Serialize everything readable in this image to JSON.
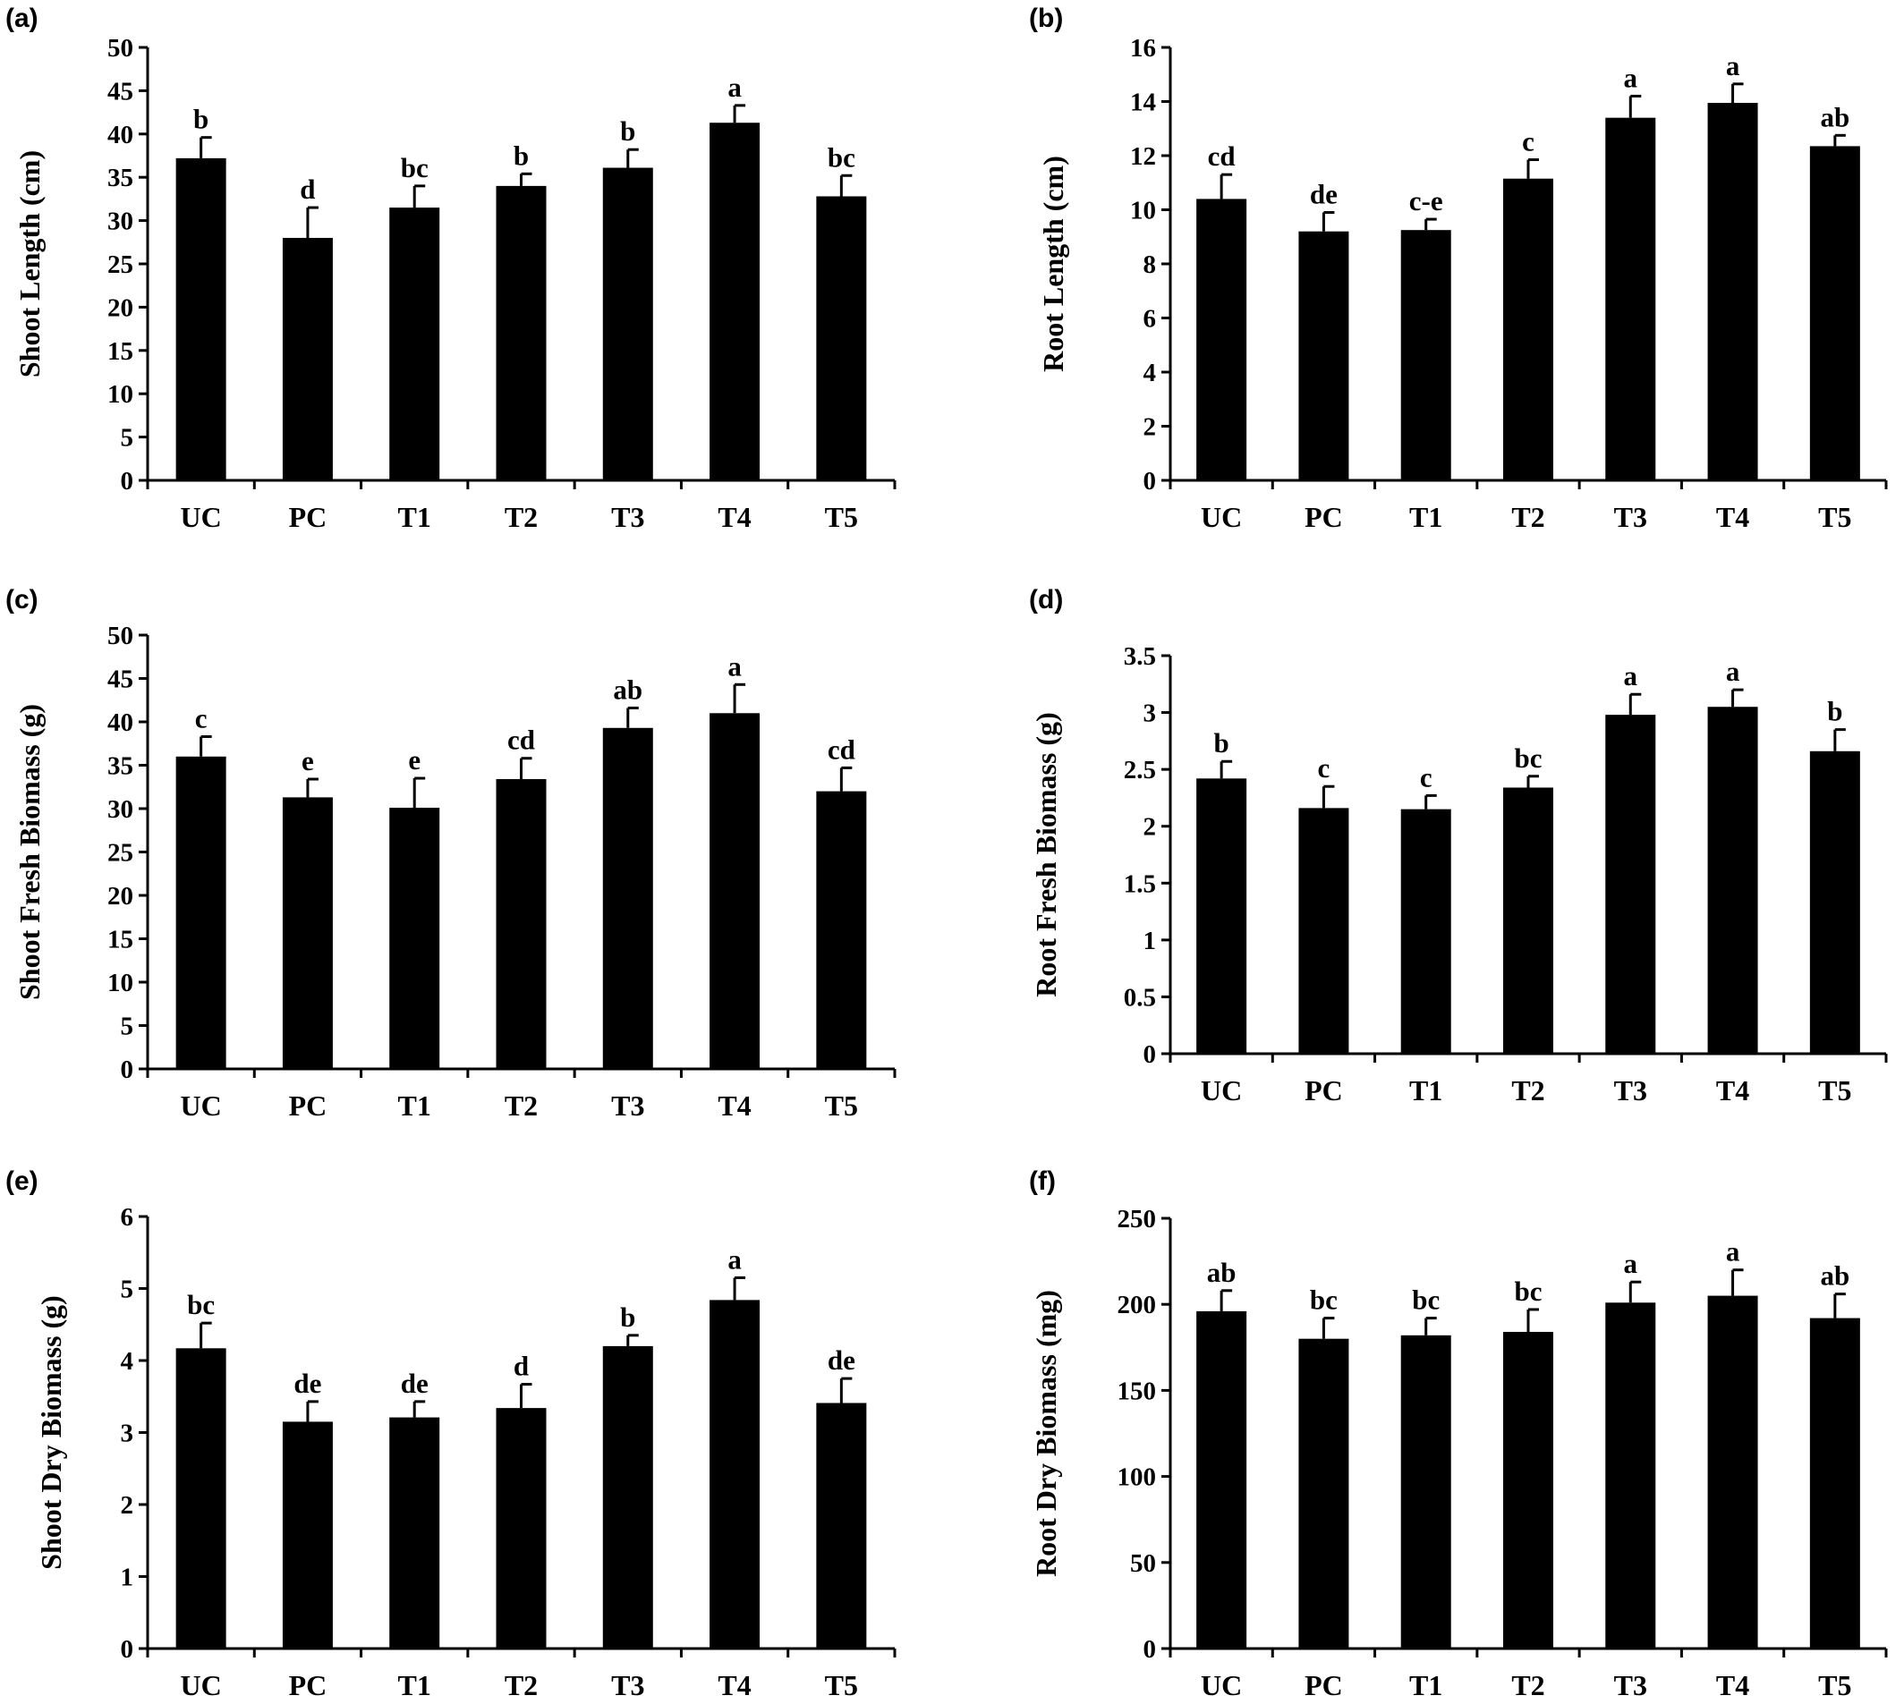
{
  "chart_data": [
    {
      "panel": "(a)",
      "type": "bar",
      "categories": [
        "UC",
        "PC",
        "T1",
        "T2",
        "T3",
        "T4",
        "T5"
      ],
      "values": [
        37.2,
        28.0,
        31.5,
        34.0,
        36.1,
        41.3,
        32.8
      ],
      "errors": [
        2.4,
        3.5,
        2.5,
        1.4,
        2.1,
        2.0,
        2.4
      ],
      "letters": [
        "b",
        "d",
        "bc",
        "b",
        "b",
        "a",
        "bc"
      ],
      "ylabel": "Shoot Length (cm)",
      "ylim": [
        0,
        50
      ],
      "yticks": [
        0,
        5,
        10,
        15,
        20,
        25,
        30,
        35,
        40,
        45,
        50
      ],
      "yticklabels": [
        "0",
        "5",
        "10",
        "15",
        "20",
        "25",
        "30",
        "35",
        "40",
        "45",
        "50"
      ]
    },
    {
      "panel": "(b)",
      "type": "bar",
      "categories": [
        "UC",
        "PC",
        "T1",
        "T2",
        "T3",
        "T4",
        "T5"
      ],
      "values": [
        10.4,
        9.2,
        9.25,
        11.15,
        13.4,
        13.95,
        12.35
      ],
      "errors": [
        0.9,
        0.7,
        0.4,
        0.7,
        0.8,
        0.7,
        0.4
      ],
      "letters": [
        "cd",
        "de",
        "c-e",
        "c",
        "a",
        "a",
        "ab"
      ],
      "ylabel": "Root Length (cm)",
      "ylim": [
        0,
        16
      ],
      "yticks": [
        0,
        2,
        4,
        6,
        8,
        10,
        12,
        14,
        16
      ],
      "yticklabels": [
        "0",
        "2",
        "4",
        "6",
        "8",
        "10",
        "12",
        "14",
        "16"
      ]
    },
    {
      "panel": "(c)",
      "type": "bar",
      "categories": [
        "UC",
        "PC",
        "T1",
        "T2",
        "T3",
        "T4",
        "T5"
      ],
      "values": [
        36.0,
        31.3,
        30.1,
        33.4,
        39.3,
        41.0,
        32.0
      ],
      "errors": [
        2.3,
        2.1,
        3.4,
        2.4,
        2.3,
        3.3,
        2.7
      ],
      "letters": [
        "c",
        "e",
        "e",
        "cd",
        "ab",
        "a",
        "cd"
      ],
      "ylabel": "Shoot Fresh Biomass (g)",
      "ylim": [
        0,
        50
      ],
      "yticks": [
        0,
        5,
        10,
        15,
        20,
        25,
        30,
        35,
        40,
        45,
        50
      ],
      "yticklabels": [
        "0",
        "5",
        "10",
        "15",
        "20",
        "25",
        "30",
        "35",
        "40",
        "45",
        "50"
      ]
    },
    {
      "panel": "(d)",
      "type": "bar",
      "categories": [
        "UC",
        "PC",
        "T1",
        "T2",
        "T3",
        "T4",
        "T5"
      ],
      "values": [
        2.42,
        2.16,
        2.15,
        2.34,
        2.98,
        3.05,
        2.66
      ],
      "errors": [
        0.15,
        0.19,
        0.12,
        0.1,
        0.18,
        0.15,
        0.19
      ],
      "letters": [
        "b",
        "c",
        "c",
        "bc",
        "a",
        "a",
        "b"
      ],
      "ylabel": "Root Fresh Biomass (g)",
      "ylim": [
        0,
        3.5
      ],
      "yticks": [
        0,
        0.5,
        1,
        1.5,
        2,
        2.5,
        3,
        3.5
      ],
      "yticklabels": [
        "0",
        "0.5",
        "1",
        "1.5",
        "2",
        "2.5",
        "3",
        "3.5"
      ]
    },
    {
      "panel": "(e)",
      "type": "bar",
      "categories": [
        "UC",
        "PC",
        "T1",
        "T2",
        "T3",
        "T4",
        "T5"
      ],
      "values": [
        4.17,
        3.15,
        3.21,
        3.34,
        4.2,
        4.84,
        3.41
      ],
      "errors": [
        0.35,
        0.28,
        0.22,
        0.33,
        0.15,
        0.31,
        0.34
      ],
      "letters": [
        "bc",
        "de",
        "de",
        "d",
        "b",
        "a",
        "de"
      ],
      "ylabel": "Shoot Dry Biomass (g)",
      "ylim": [
        0,
        6
      ],
      "yticks": [
        0,
        1,
        2,
        3,
        4,
        5,
        6
      ],
      "yticklabels": [
        "0",
        "1",
        "2",
        "3",
        "4",
        "5",
        "6"
      ]
    },
    {
      "panel": "(f)",
      "type": "bar",
      "categories": [
        "UC",
        "PC",
        "T1",
        "T2",
        "T3",
        "T4",
        "T5"
      ],
      "values": [
        196,
        180,
        182,
        184,
        201,
        205,
        192
      ],
      "errors": [
        12,
        12,
        10,
        13,
        12,
        15,
        14
      ],
      "letters": [
        "ab",
        "bc",
        "bc",
        "bc",
        "a",
        "a",
        "ab"
      ],
      "ylabel": "Root Dry Biomass (mg)",
      "ylim": [
        0,
        250
      ],
      "yticks": [
        0,
        50,
        100,
        150,
        200,
        250
      ],
      "yticklabels": [
        "0",
        "50",
        "100",
        "150",
        "200",
        "250"
      ]
    }
  ]
}
